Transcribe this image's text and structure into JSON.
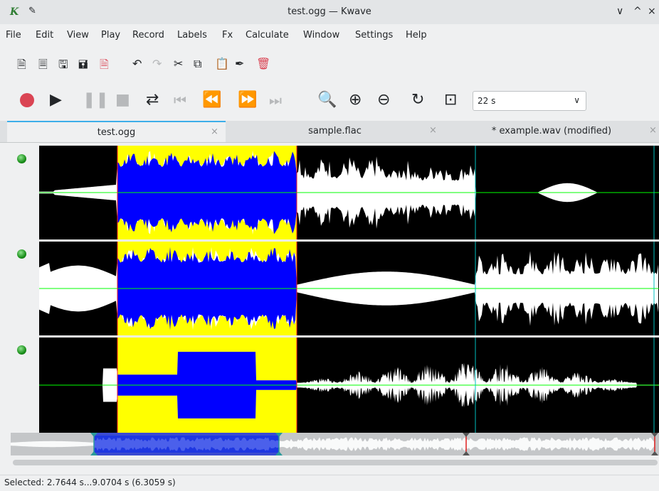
{
  "window": {
    "logo": "K",
    "title": "test.ogg — Kwave",
    "pin_icon": "pin-icon",
    "controls": [
      "∨",
      "^",
      "×"
    ]
  },
  "menu": [
    "File",
    "Edit",
    "View",
    "Play",
    "Record",
    "Labels",
    "Fx",
    "Calculate",
    "Window",
    "Settings",
    "Help"
  ],
  "toolbar_file": [
    "new-file-icon",
    "open-file-icon",
    "save-icon",
    "save-as-icon",
    "close-file-icon",
    "undo-icon",
    "redo-icon",
    "cut-icon",
    "copy-icon",
    "paste-icon",
    "erase-icon",
    "delete-icon"
  ],
  "toolbar_transport": [
    "record-icon",
    "play-icon",
    "pause-icon",
    "stop-icon",
    "loop-icon",
    "skip-start-icon",
    "rewind-icon",
    "forward-icon",
    "skip-end-icon",
    "zoom-selection-icon",
    "zoom-in-icon",
    "zoom-out-icon",
    "zoom-normal-icon",
    "zoom-all-icon"
  ],
  "zoom": {
    "value": "22 s"
  },
  "tabs": [
    {
      "label": "test.ogg",
      "close": "×",
      "active": true
    },
    {
      "label": "sample.flac",
      "close": "×",
      "active": false
    },
    {
      "label": "* example.wav (modified)",
      "close": "×",
      "active": false
    }
  ],
  "colors": {
    "selection": "#ffff00",
    "signal_selected": "#0000ff",
    "signal": "#ffffff",
    "background": "#000000",
    "zero_line": "#00ff00",
    "label_marker": "#00c0c0",
    "record_button": "#da4453"
  },
  "status": {
    "text": "Selected: 2.7644 s...9.0704 s (6.3059 s)"
  }
}
